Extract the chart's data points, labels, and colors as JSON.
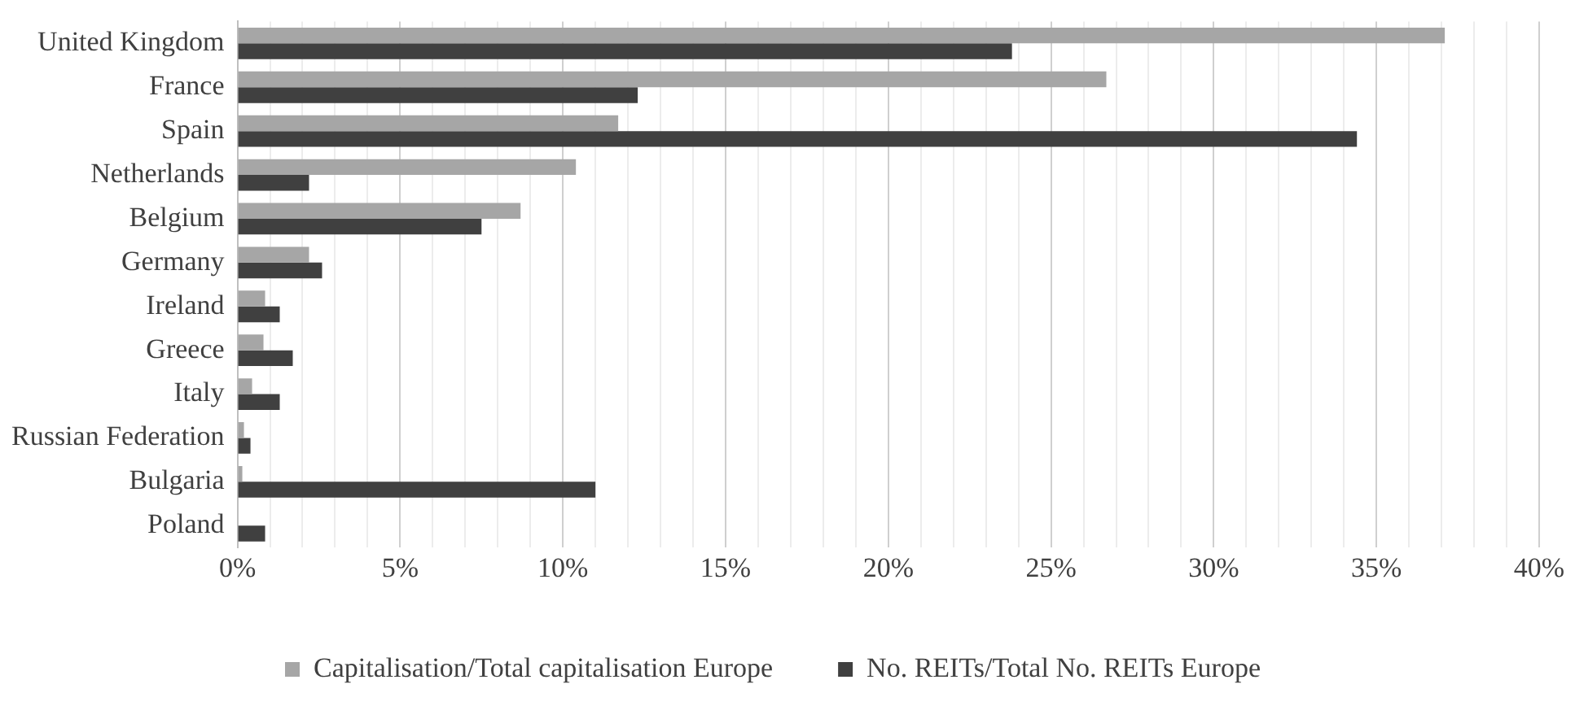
{
  "chart_data": {
    "type": "bar",
    "orientation": "horizontal",
    "categories": [
      "United Kingdom",
      "France",
      "Spain",
      "Netherlands",
      "Belgium",
      "Germany",
      "Ireland",
      "Greece",
      "Italy",
      "Russian Federation",
      "Bulgaria",
      "Poland"
    ],
    "series": [
      {
        "name": "Capitalisation/Total capitalisation Europe",
        "color": "#a6a6a6",
        "values": [
          37.1,
          26.7,
          11.7,
          10.4,
          8.7,
          2.2,
          0.85,
          0.8,
          0.45,
          0.2,
          0.15,
          0
        ]
      },
      {
        "name": "No. REITs/Total No. REITs Europe",
        "color": "#404040",
        "values": [
          23.8,
          12.3,
          34.4,
          2.2,
          7.5,
          2.6,
          1.3,
          1.7,
          1.3,
          0.4,
          11,
          0.85
        ]
      }
    ],
    "xlim": [
      0,
      40
    ],
    "xticks": [
      {
        "value": 0,
        "label": "0%"
      },
      {
        "value": 1,
        "label": null
      },
      {
        "value": 2,
        "label": null
      },
      {
        "value": 3,
        "label": null
      },
      {
        "value": 4,
        "label": null
      },
      {
        "value": 5,
        "label": "5%"
      },
      {
        "value": 6,
        "label": null
      },
      {
        "value": 7,
        "label": null
      },
      {
        "value": 8,
        "label": null
      },
      {
        "value": 9,
        "label": null
      },
      {
        "value": 10,
        "label": "10%"
      },
      {
        "value": 11,
        "label": null
      },
      {
        "value": 12,
        "label": null
      },
      {
        "value": 13,
        "label": null
      },
      {
        "value": 14,
        "label": null
      },
      {
        "value": 15,
        "label": "15%"
      },
      {
        "value": 16,
        "label": null
      },
      {
        "value": 17,
        "label": null
      },
      {
        "value": 18,
        "label": null
      },
      {
        "value": 19,
        "label": null
      },
      {
        "value": 20,
        "label": "20%"
      },
      {
        "value": 21,
        "label": null
      },
      {
        "value": 22,
        "label": null
      },
      {
        "value": 23,
        "label": null
      },
      {
        "value": 24,
        "label": null
      },
      {
        "value": 25,
        "label": "25%"
      },
      {
        "value": 26,
        "label": null
      },
      {
        "value": 27,
        "label": null
      },
      {
        "value": 28,
        "label": null
      },
      {
        "value": 29,
        "label": null
      },
      {
        "value": 30,
        "label": "30%"
      },
      {
        "value": 31,
        "label": null
      },
      {
        "value": 32,
        "label": null
      },
      {
        "value": 33,
        "label": null
      },
      {
        "value": 34,
        "label": null
      },
      {
        "value": 35,
        "label": "35%"
      },
      {
        "value": 36,
        "label": null
      },
      {
        "value": 37,
        "label": null
      },
      {
        "value": 38,
        "label": null
      },
      {
        "value": 39,
        "label": null
      },
      {
        "value": 40,
        "label": "40%"
      }
    ],
    "grid": "x",
    "legend": "bottom"
  }
}
